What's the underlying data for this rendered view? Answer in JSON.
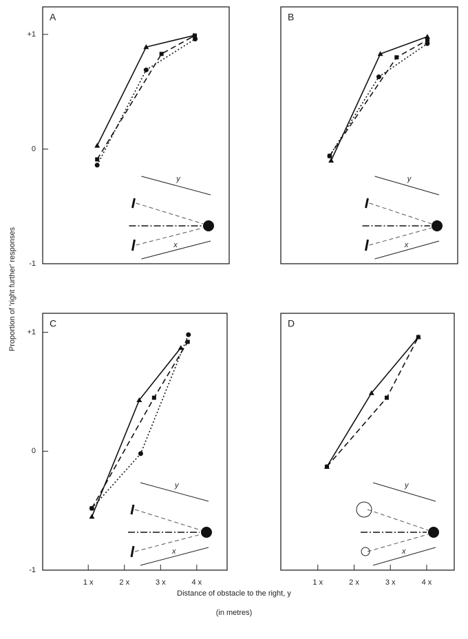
{
  "y_label": "Proportion of 'right further' responses",
  "x_label": "Distance of obstacle to the right, y",
  "x_label_2": "(in metres)",
  "chart_data": [
    {
      "type": "line",
      "label": "A",
      "diagram_labels": [
        "y",
        "x"
      ],
      "xlim": [
        -0.26,
        4.84
      ],
      "ylim": [
        -1,
        1.24
      ],
      "yticks": [
        {
          "value": 1,
          "label": "+1"
        },
        0,
        -1
      ],
      "series": [
        {
          "color": "#111",
          "style": "solid",
          "marker": "triangle",
          "x": [
            1.23,
            2.57,
            3.87
          ],
          "values": [
            0.03,
            0.89,
            0.99
          ]
        },
        {
          "color": "#111",
          "style": "dashed",
          "marker": "square",
          "x": [
            1.23,
            2.99,
            3.9
          ],
          "values": [
            -0.09,
            0.83,
            0.99
          ]
        },
        {
          "color": "#111",
          "style": "dotted",
          "marker": "circle",
          "x": [
            1.23,
            2.57,
            3.91
          ],
          "values": [
            -0.14,
            0.69,
            0.96
          ]
        }
      ]
    },
    {
      "type": "line",
      "label": "B",
      "diagram_labels": [
        "y",
        "x"
      ],
      "xlim": [
        -0.02,
        4.76
      ],
      "ylim": [
        -1,
        1.24
      ],
      "series": [
        {
          "color": "#111",
          "style": "solid",
          "marker": "triangle",
          "x": [
            1.34,
            2.67,
            3.94
          ],
          "values": [
            -0.1,
            0.83,
            0.98
          ]
        },
        {
          "color": "#111",
          "style": "dashed",
          "marker": "square",
          "x": [
            1.3,
            3.11,
            3.94
          ],
          "values": [
            -0.06,
            0.8,
            0.95
          ]
        },
        {
          "color": "#111",
          "style": "dotted",
          "marker": "circle",
          "x": [
            1.3,
            2.63,
            3.94
          ],
          "values": [
            -0.06,
            0.63,
            0.92
          ]
        }
      ]
    },
    {
      "type": "line",
      "label": "C",
      "diagram_labels": [
        "y",
        "x"
      ],
      "xlim": [
        -0.26,
        4.84
      ],
      "ylim": [
        -1,
        1.16
      ],
      "yticks": [
        {
          "value": 1,
          "label": "+1"
        },
        0,
        -1
      ],
      "xticks": [
        {
          "value": 1,
          "label": "1 x"
        },
        {
          "value": 2,
          "label": "2 x"
        },
        {
          "value": 3,
          "label": "3 x"
        },
        {
          "value": 4,
          "label": "4 x"
        }
      ],
      "series": [
        {
          "color": "#111",
          "style": "solid",
          "marker": "triangle",
          "x": [
            1.1,
            2.41,
            3.56
          ],
          "values": [
            -0.55,
            0.43,
            0.87
          ]
        },
        {
          "color": "#111",
          "style": "dashed",
          "marker": "square",
          "x": [
            1.1,
            2.82,
            3.75
          ],
          "values": [
            -0.48,
            0.45,
            0.92
          ]
        },
        {
          "color": "#111",
          "style": "dotted",
          "marker": "circle",
          "x": [
            1.1,
            2.45,
            3.77
          ],
          "values": [
            -0.48,
            -0.02,
            0.98
          ]
        }
      ]
    },
    {
      "type": "line",
      "label": "D",
      "diagram_labels": [
        "y",
        "x"
      ],
      "xlim": [
        -0.02,
        4.76
      ],
      "ylim": [
        -1,
        1.16
      ],
      "xticks": [
        {
          "value": 1,
          "label": "1 x"
        },
        {
          "value": 2,
          "label": "2 x"
        },
        {
          "value": 3,
          "label": "3 x"
        },
        {
          "value": 4,
          "label": "4 x"
        }
      ],
      "series": [
        {
          "color": "#111",
          "style": "solid",
          "marker": "triangle",
          "x": [
            1.25,
            2.48,
            3.77
          ],
          "values": [
            -0.13,
            0.49,
            0.96
          ]
        },
        {
          "color": "#111",
          "style": "dashed",
          "marker": "square",
          "x": [
            1.25,
            2.9,
            3.77
          ],
          "values": [
            -0.13,
            0.45,
            0.96
          ]
        }
      ]
    }
  ]
}
